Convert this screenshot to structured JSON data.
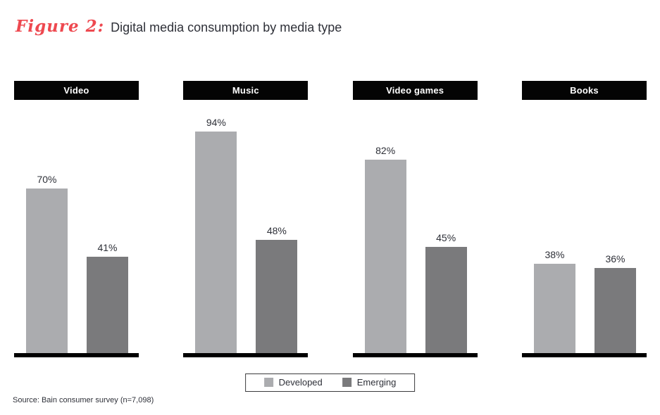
{
  "title": {
    "figure_label": "Figure 2:",
    "text": "Digital media consumption by media type"
  },
  "colors": {
    "accent_red": "#ee4950",
    "text_dark": "#2e3038",
    "header_bg": "#040404",
    "developed": "#abacaf",
    "emerging": "#7a7a7c"
  },
  "chart_data": {
    "type": "bar",
    "title": "Digital media consumption by media type",
    "categories": [
      "Video",
      "Music",
      "Video games",
      "Books"
    ],
    "series": [
      {
        "name": "Developed",
        "color": "#abacaf",
        "values": [
          70,
          94,
          82,
          38
        ]
      },
      {
        "name": "Emerging",
        "color": "#7a7a7c",
        "values": [
          41,
          48,
          45,
          36
        ]
      }
    ],
    "value_suffix": "%",
    "xlabel": "",
    "ylabel": "",
    "ylim": [
      0,
      100
    ],
    "grid": false,
    "legend_position": "bottom",
    "data_labels": true
  },
  "source": "Source: Bain consumer survey (n=7,098)"
}
